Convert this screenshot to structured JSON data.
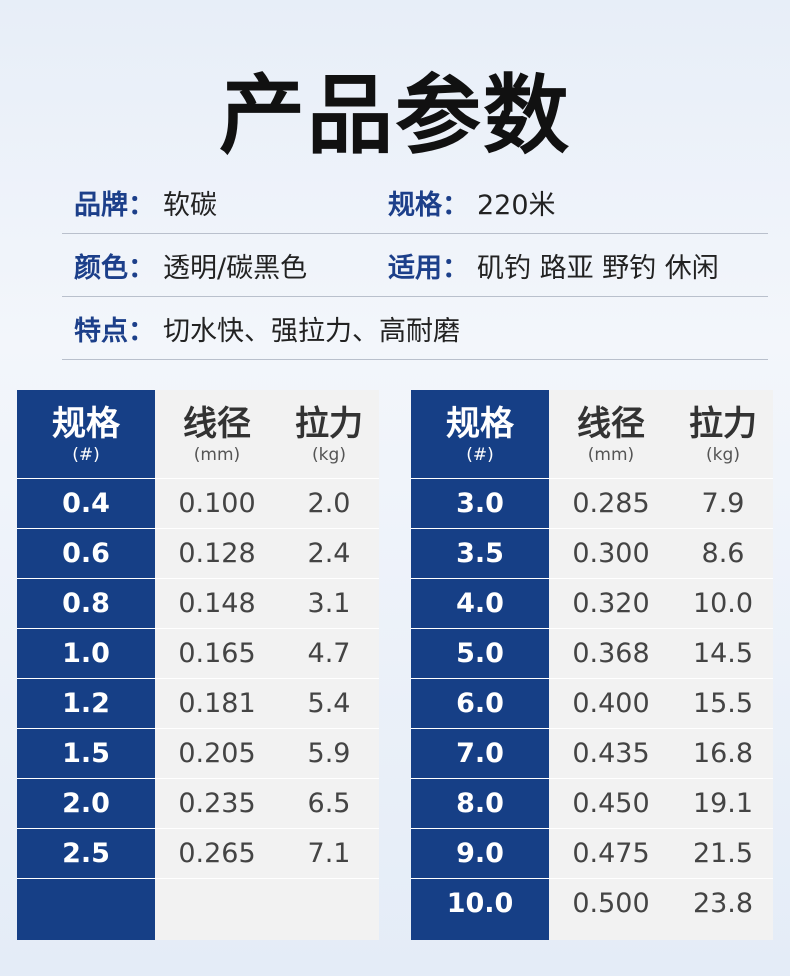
{
  "title": "产品参数",
  "info": {
    "brand_label": "品牌",
    "brand_value": "软碳",
    "spec_label": "规格",
    "spec_value": "220米",
    "color_label": "颜色",
    "color_value": "透明/碳黑色",
    "use_label": "适用",
    "use_value": "矶钓 路亚 野钓 休闲",
    "feature_label": "特点",
    "feature_value": "切水快、强拉力、高耐磨",
    "colon": "："
  },
  "table_header": {
    "spec": "规格",
    "spec_unit": "(#)",
    "diameter": "线径",
    "diameter_unit": "(mm)",
    "pull": "拉力",
    "pull_unit": "(kg)"
  },
  "left_rows": [
    {
      "spec": "0.4",
      "diameter": "0.100",
      "pull": "2.0"
    },
    {
      "spec": "0.6",
      "diameter": "0.128",
      "pull": "2.4"
    },
    {
      "spec": "0.8",
      "diameter": "0.148",
      "pull": "3.1"
    },
    {
      "spec": "1.0",
      "diameter": "0.165",
      "pull": "4.7"
    },
    {
      "spec": "1.2",
      "diameter": "0.181",
      "pull": "5.4"
    },
    {
      "spec": "1.5",
      "diameter": "0.205",
      "pull": "5.9"
    },
    {
      "spec": "2.0",
      "diameter": "0.235",
      "pull": "6.5"
    },
    {
      "spec": "2.5",
      "diameter": "0.265",
      "pull": "7.1"
    },
    {
      "spec": "",
      "diameter": "",
      "pull": ""
    }
  ],
  "right_rows": [
    {
      "spec": "3.0",
      "diameter": "0.285",
      "pull": "7.9"
    },
    {
      "spec": "3.5",
      "diameter": "0.300",
      "pull": "8.6"
    },
    {
      "spec": "4.0",
      "diameter": "0.320",
      "pull": "10.0"
    },
    {
      "spec": "5.0",
      "diameter": "0.368",
      "pull": "14.5"
    },
    {
      "spec": "6.0",
      "diameter": "0.400",
      "pull": "15.5"
    },
    {
      "spec": "7.0",
      "diameter": "0.435",
      "pull": "16.8"
    },
    {
      "spec": "8.0",
      "diameter": "0.450",
      "pull": "19.1"
    },
    {
      "spec": "9.0",
      "diameter": "0.475",
      "pull": "21.5"
    },
    {
      "spec": "10.0",
      "diameter": "0.500",
      "pull": "23.8"
    }
  ],
  "colors": {
    "spec_column": "#163f86",
    "label": "#1c3f8a",
    "cell_bg": "#f2f2f2"
  }
}
